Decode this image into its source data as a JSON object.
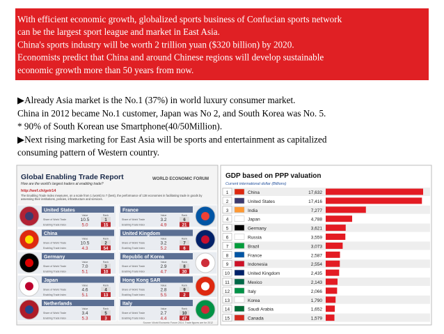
{
  "slide": {
    "header_lines": [
      "With efficient economic growth, globalized sports business of Confucian sports network",
      "can be the largest sport league and market in East Asia.",
      "China's sports industry will be worth 2 trillion yuan ($320 billion) by 2020.",
      "Economists predict that China and around Chinese regions will develop sustainable",
      "economic growth more than 50 years from now."
    ],
    "body_lines": [
      "▶Already Asia market is the No.1 (37%) in world luxury consumer market.",
      "China in 2012 became No.1 customer, Japan was No 2, and South Korea was No. 5.",
      "  * 90% of South Korean use Smartphone(40/50Million).",
      "▶Next rising marketing for East Asia will be sports and entertainment as capitalized",
      "consuming pattern of  Western country."
    ]
  },
  "trade_report": {
    "title": "Global Enabling Trade Report",
    "subtitle": "How are the world's largest traders at enabling trade?",
    "publisher": "WORLD ECONOMIC FORUM",
    "url": "http://wef.ch/getr14",
    "description": "The Enabling Trade Index measures, on a scale from 1 (worst) to 7 (best), the performance of 138 economies in facilitating trade in goods by assessing their institutions, policies, infrastructure and services.",
    "columns": [
      "Value",
      "Rank"
    ],
    "metrics": [
      "Share of World Trade",
      "Enabling Trade Index"
    ],
    "countries": [
      {
        "name": "United States",
        "share": "10.5",
        "share_rank": "1",
        "eti": "5.0",
        "eti_rank": "15"
      },
      {
        "name": "France",
        "share": "3.2",
        "share_rank": "6",
        "eti": "4.9",
        "eti_rank": "21"
      },
      {
        "name": "China",
        "share": "10.5",
        "share_rank": "2",
        "eti": "4.3",
        "eti_rank": "54"
      },
      {
        "name": "United Kingdom",
        "share": "3.2",
        "share_rank": "7",
        "eti": "5.2",
        "eti_rank": "6"
      },
      {
        "name": "Germany",
        "share": "7.0",
        "share_rank": "3",
        "eti": "5.1",
        "eti_rank": "10"
      },
      {
        "name": "Republic of Korea",
        "share": "2.9",
        "share_rank": "8",
        "eti": "4.7",
        "eti_rank": "30"
      },
      {
        "name": "Japan",
        "share": "4.6",
        "share_rank": "4",
        "eti": "5.1",
        "eti_rank": "13"
      },
      {
        "name": "Hong Kong SAR",
        "share": "2.8",
        "share_rank": "9",
        "eti": "5.5",
        "eti_rank": "2"
      },
      {
        "name": "Netherlands",
        "share": "3.4",
        "share_rank": "5",
        "eti": "5.3",
        "eti_rank": "3"
      },
      {
        "name": "Italy",
        "share": "2.7",
        "share_rank": "10",
        "eti": "4.4",
        "eti_rank": "47"
      }
    ],
    "source": "Source: World Economic Forum 2014. Trade figures are for 2012"
  },
  "gdp": {
    "title": "GDP based on PPP valuation",
    "subtitle": "Current international dollar (Billions)",
    "rows": [
      {
        "rank": 1,
        "country": "China",
        "value": 17632,
        "value_label": "17,632"
      },
      {
        "rank": 2,
        "country": "United States",
        "value": 17416,
        "value_label": "17,416"
      },
      {
        "rank": 3,
        "country": "India",
        "value": 7277,
        "value_label": "7,277"
      },
      {
        "rank": 4,
        "country": "Japan",
        "value": 4788,
        "value_label": "4,788"
      },
      {
        "rank": 5,
        "country": "Germany",
        "value": 3621,
        "value_label": "3,621"
      },
      {
        "rank": 6,
        "country": "Russia",
        "value": 3559,
        "value_label": "3,559"
      },
      {
        "rank": 7,
        "country": "Brazil",
        "value": 3073,
        "value_label": "3,073"
      },
      {
        "rank": 8,
        "country": "France",
        "value": 2587,
        "value_label": "2,587"
      },
      {
        "rank": 9,
        "country": "Indonesia",
        "value": 2554,
        "value_label": "2,554"
      },
      {
        "rank": 10,
        "country": "United Kingdom",
        "value": 2435,
        "value_label": "2,435"
      },
      {
        "rank": 11,
        "country": "Mexico",
        "value": 2143,
        "value_label": "2,143"
      },
      {
        "rank": 12,
        "country": "Italy",
        "value": 2066,
        "value_label": "2,066"
      },
      {
        "rank": 13,
        "country": "Korea",
        "value": 1790,
        "value_label": "1,790"
      },
      {
        "rank": 14,
        "country": "Saudi Arabia",
        "value": 1652,
        "value_label": "1,652"
      },
      {
        "rank": 15,
        "country": "Canada",
        "value": 1579,
        "value_label": "1,579"
      }
    ]
  }
}
